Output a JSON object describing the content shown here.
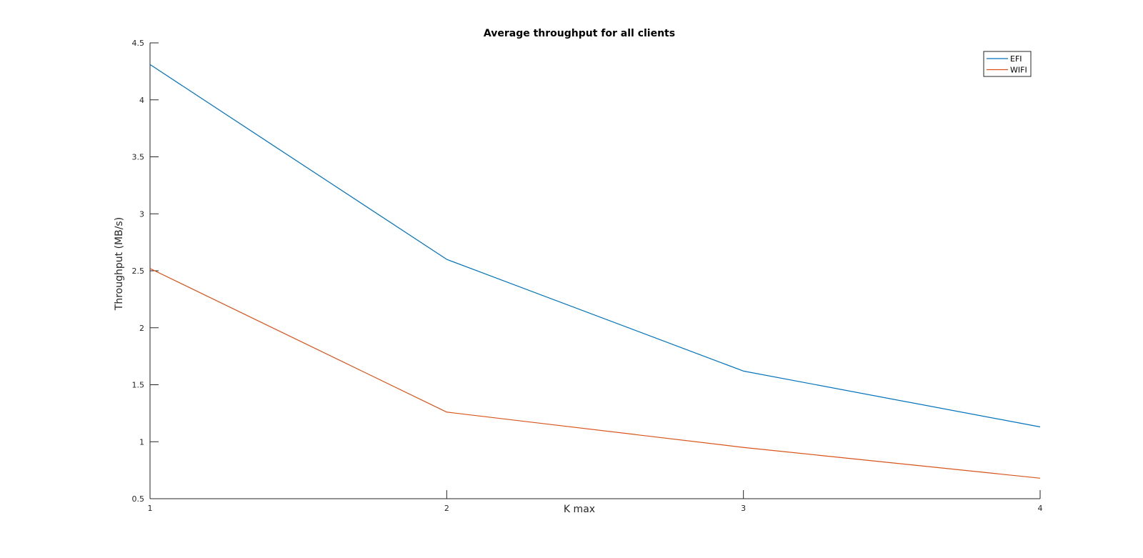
{
  "chart_data": {
    "type": "line",
    "title": "Average throughput for all clients",
    "xlabel": "K max",
    "ylabel": "Throughput (MB/s)",
    "x": [
      1,
      2,
      3,
      4
    ],
    "xlim": [
      1,
      4
    ],
    "ylim": [
      0.5,
      4.5
    ],
    "xticks": [
      "1",
      "2",
      "3",
      "4"
    ],
    "yticks": [
      "0.5",
      "1",
      "1.5",
      "2",
      "2.5",
      "3",
      "3.5",
      "4",
      "4.5"
    ],
    "grid": false,
    "legend_position": "top-right",
    "series": [
      {
        "name": "EFI",
        "color": "#0072BD",
        "values": [
          4.31,
          2.6,
          1.62,
          1.13
        ]
      },
      {
        "name": "WIFI",
        "color": "#D95319",
        "values": [
          2.52,
          1.26,
          0.95,
          0.68
        ]
      }
    ]
  }
}
